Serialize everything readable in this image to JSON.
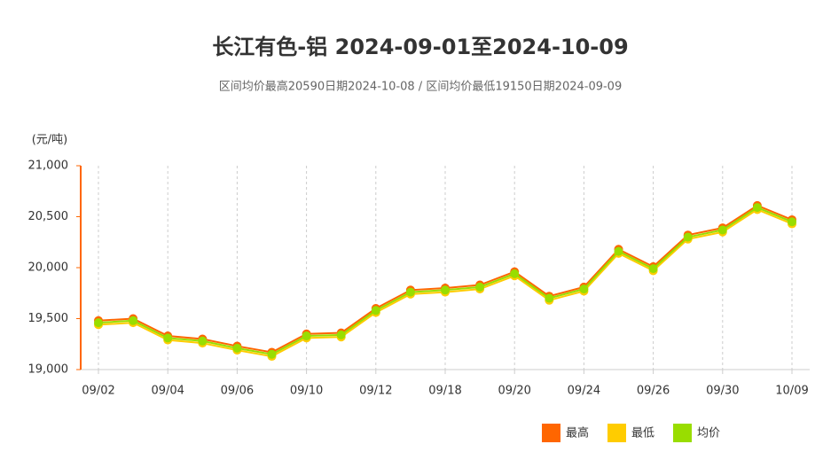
{
  "chart_data": {
    "type": "line",
    "title": "长江有色-铝 2024-09-01至2024-10-09",
    "subtitle": "区间均价最高20590日期2024-10-08 / 区间均价最低19150日期2024-09-09",
    "y_label": "(元/吨)",
    "categories": [
      "09/02",
      null,
      "09/04",
      null,
      "09/06",
      null,
      "09/10",
      null,
      "09/12",
      null,
      "09/18",
      null,
      "09/20",
      null,
      "09/24",
      null,
      "09/26",
      null,
      "09/30",
      null,
      "10/09"
    ],
    "series": [
      {
        "name": "最高",
        "color": "#ff6600",
        "values": [
          19480,
          19500,
          19330,
          19300,
          19230,
          19170,
          19350,
          19360,
          19600,
          19780,
          19800,
          19830,
          19960,
          19720,
          19810,
          20180,
          20010,
          20320,
          20390,
          20610,
          20470
        ]
      },
      {
        "name": "最低",
        "color": "#ffcc00",
        "values": [
          19440,
          19460,
          19290,
          19260,
          19190,
          19130,
          19310,
          19320,
          19560,
          19740,
          19760,
          19790,
          19920,
          19680,
          19770,
          20140,
          19970,
          20280,
          20350,
          20570,
          20430
        ]
      },
      {
        "name": "均价",
        "color": "#99dd00",
        "values": [
          19460,
          19480,
          19310,
          19280,
          19210,
          19150,
          19330,
          19340,
          19580,
          19760,
          19780,
          19810,
          19940,
          19700,
          19790,
          20160,
          19990,
          20300,
          20370,
          20590,
          20450
        ]
      }
    ],
    "ylim": [
      19000,
      21000
    ],
    "yticks": [
      {
        "value": 19000,
        "label": "19,000"
      },
      {
        "value": 19500,
        "label": "19,500"
      },
      {
        "value": 20000,
        "label": "20,000"
      },
      {
        "value": 20500,
        "label": "20,500"
      },
      {
        "value": 21000,
        "label": "21,000"
      }
    ],
    "grid": true
  }
}
